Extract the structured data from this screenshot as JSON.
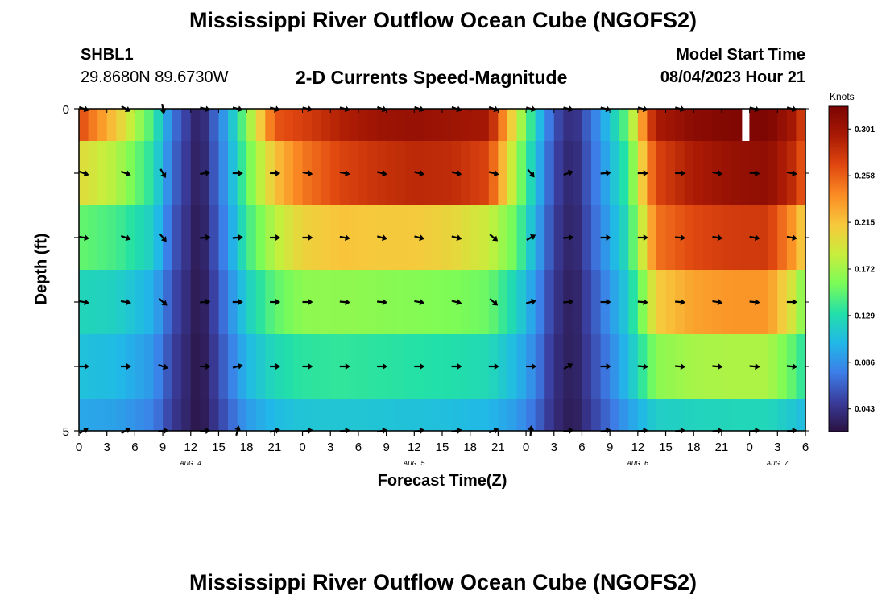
{
  "page": {
    "title": "Mississippi River Outflow Ocean Cube (NGOFS2)",
    "title_bottom": "Mississippi River Outflow Ocean Cube (NGOFS2)",
    "station_id": "SHBL1",
    "coordinates": "29.8680N  89.6730W",
    "subtitle": "2-D Currents Speed-Magnitude",
    "model_start_label": "Model Start Time",
    "model_start_value": "08/04/2023 Hour 21"
  },
  "chart_data": {
    "type": "heatmap",
    "title": "2-D Currents Speed-Magnitude",
    "xlabel": "Forecast Time(Z)",
    "ylabel": "Depth (ft)",
    "x_range_hours": [
      0,
      78
    ],
    "x_tick_labels": [
      "0",
      "3",
      "6",
      "9",
      "12",
      "15",
      "18",
      "21",
      "0",
      "3",
      "6",
      "9",
      "12",
      "15",
      "18",
      "21",
      "0",
      "3",
      "6",
      "9",
      "12",
      "15",
      "18",
      "21",
      "0",
      "3",
      "6"
    ],
    "date_labels": [
      {
        "label": "AUG 4",
        "hour": 12
      },
      {
        "label": "AUG 5",
        "hour": 36
      },
      {
        "label": "AUG 6",
        "hour": 60
      },
      {
        "label": "AUG 7",
        "hour": 75
      }
    ],
    "y_range_ft": [
      0,
      5
    ],
    "y_tick_labels": [
      "0",
      "5"
    ],
    "layer_depths_ft": [
      0,
      1,
      2,
      3,
      4,
      5
    ],
    "colorbar": {
      "unit": "Knots",
      "min": 0.022,
      "max": 0.322,
      "ticks": [
        0.043,
        0.086,
        0.129,
        0.172,
        0.215,
        0.258,
        0.301
      ],
      "colors": [
        "#2a1240",
        "#3a3c9c",
        "#3c7ee8",
        "#21b8e8",
        "#22e0a8",
        "#7afc58",
        "#c8ee3c",
        "#f7c83c",
        "#fb8c24",
        "#e04810",
        "#aa1a04",
        "#7a0403"
      ]
    },
    "speed_knots": {
      "hours": [
        0,
        4,
        8,
        10,
        13,
        16,
        18,
        21,
        24,
        28,
        32,
        36,
        40,
        44,
        47,
        49,
        51,
        53,
        56,
        59,
        61,
        62,
        66,
        70,
        74,
        77,
        78
      ],
      "layers": [
        [
          0.268,
          0.212,
          0.14,
          0.075,
          0.028,
          0.1,
          0.16,
          0.262,
          0.272,
          0.29,
          0.302,
          0.306,
          0.302,
          0.298,
          0.19,
          0.12,
          0.06,
          0.035,
          0.09,
          0.155,
          0.262,
          0.295,
          0.312,
          0.318,
          0.32,
          0.294,
          0.262
        ],
        [
          0.2,
          0.178,
          0.13,
          0.07,
          0.026,
          0.095,
          0.15,
          0.215,
          0.248,
          0.27,
          0.28,
          0.286,
          0.284,
          0.27,
          0.17,
          0.11,
          0.055,
          0.032,
          0.085,
          0.14,
          0.235,
          0.27,
          0.294,
          0.306,
          0.31,
          0.28,
          0.252
        ],
        [
          0.152,
          0.142,
          0.118,
          0.064,
          0.024,
          0.088,
          0.138,
          0.18,
          0.206,
          0.215,
          0.212,
          0.212,
          0.204,
          0.186,
          0.152,
          0.1,
          0.05,
          0.03,
          0.08,
          0.13,
          0.21,
          0.25,
          0.268,
          0.275,
          0.276,
          0.23,
          0.2
        ],
        [
          0.124,
          0.12,
          0.1,
          0.058,
          0.023,
          0.08,
          0.118,
          0.15,
          0.165,
          0.166,
          0.164,
          0.162,
          0.16,
          0.154,
          0.122,
          0.088,
          0.046,
          0.028,
          0.072,
          0.118,
          0.175,
          0.21,
          0.23,
          0.236,
          0.236,
          0.184,
          0.152
        ],
        [
          0.11,
          0.106,
          0.088,
          0.052,
          0.022,
          0.072,
          0.104,
          0.126,
          0.134,
          0.136,
          0.134,
          0.132,
          0.13,
          0.126,
          0.104,
          0.08,
          0.042,
          0.028,
          0.066,
          0.108,
          0.146,
          0.164,
          0.174,
          0.176,
          0.176,
          0.146,
          0.128
        ],
        [
          0.096,
          0.093,
          0.078,
          0.048,
          0.022,
          0.064,
          0.09,
          0.106,
          0.112,
          0.113,
          0.112,
          0.11,
          0.108,
          0.104,
          0.09,
          0.07,
          0.04,
          0.026,
          0.06,
          0.092,
          0.11,
          0.118,
          0.122,
          0.124,
          0.124,
          0.112,
          0.104
        ]
      ]
    },
    "vectors": {
      "hours": [
        0,
        4.5,
        8.5,
        13,
        16.5,
        20.5,
        24,
        28,
        32,
        36,
        40,
        44,
        48,
        52,
        56,
        60,
        64,
        68,
        72,
        76
      ],
      "angles_deg_rows": [
        [
          20,
          30,
          80,
          15,
          15,
          15,
          15,
          15,
          20,
          20,
          20,
          20,
          15,
          15,
          15,
          15,
          15,
          15,
          15,
          15
        ],
        [
          20,
          20,
          60,
          -10,
          0,
          0,
          10,
          10,
          15,
          15,
          15,
          15,
          50,
          -20,
          -5,
          0,
          0,
          10,
          5,
          10
        ],
        [
          10,
          20,
          50,
          -5,
          -5,
          0,
          0,
          10,
          15,
          15,
          15,
          40,
          -30,
          -5,
          0,
          0,
          5,
          10,
          10,
          10
        ],
        [
          10,
          10,
          40,
          -5,
          0,
          0,
          0,
          5,
          5,
          10,
          15,
          40,
          -15,
          -5,
          0,
          5,
          5,
          10,
          5,
          0
        ],
        [
          0,
          0,
          20,
          0,
          -15,
          0,
          0,
          0,
          0,
          0,
          0,
          0,
          0,
          -30,
          0,
          5,
          5,
          5,
          5,
          5
        ],
        [
          -30,
          -30,
          -5,
          0,
          -75,
          -15,
          -10,
          -5,
          -10,
          -10,
          -10,
          -20,
          -85,
          -10,
          -10,
          -5,
          -5,
          -5,
          -5,
          -5
        ]
      ],
      "missing": [
        [
          0,
          17
        ]
      ]
    }
  }
}
